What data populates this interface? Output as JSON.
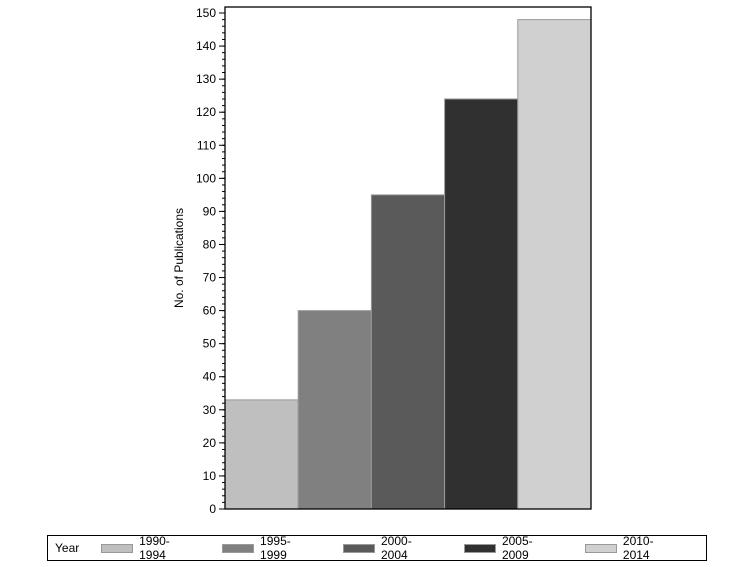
{
  "chart_data": {
    "type": "bar",
    "title": "",
    "xlabel": "",
    "ylabel": "No. of Publications",
    "ylim": [
      0,
      150
    ],
    "yticks": [
      0,
      10,
      20,
      30,
      40,
      50,
      60,
      70,
      80,
      90,
      100,
      110,
      120,
      130,
      140,
      150
    ],
    "grid": false,
    "legend_position": "bottom",
    "legend_title": "Year",
    "categories": [
      "1990-1994",
      "1995-1999",
      "2000-2004",
      "2005-2009",
      "2010-2014"
    ],
    "values": [
      33,
      60,
      95,
      124,
      148
    ],
    "colors": [
      "#bfbfbf",
      "#808080",
      "#5a5a5a",
      "#303030",
      "#d0d0d0"
    ]
  }
}
